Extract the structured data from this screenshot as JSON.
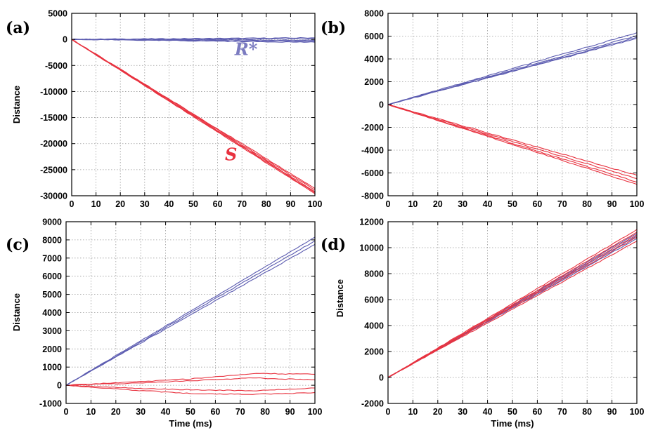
{
  "colors": {
    "blue": "#5b5bb0",
    "red": "#e8323f",
    "r_label": "#7b7bc0",
    "s_label": "#e8323f"
  },
  "chart_data": [
    {
      "id": "a",
      "panel_label": "(a)",
      "type": "line",
      "xlim": [
        0,
        100
      ],
      "ylim": [
        -30000,
        5000
      ],
      "xticks": [
        0,
        10,
        20,
        30,
        40,
        50,
        60,
        70,
        80,
        90,
        100
      ],
      "yticks": [
        -30000,
        -25000,
        -20000,
        -15000,
        -10000,
        -5000,
        0,
        5000
      ],
      "xlabel": "",
      "ylabel": "Distance",
      "grid": true,
      "series": [
        {
          "color": "blue",
          "x": [
            0,
            100
          ],
          "y": [
            0,
            300
          ]
        },
        {
          "color": "blue",
          "x": [
            0,
            100
          ],
          "y": [
            0,
            100
          ]
        },
        {
          "color": "blue",
          "x": [
            0,
            100
          ],
          "y": [
            0,
            -200
          ]
        },
        {
          "color": "blue",
          "x": [
            0,
            100
          ],
          "y": [
            0,
            -400
          ]
        },
        {
          "color": "blue",
          "x": [
            0,
            100
          ],
          "y": [
            0,
            -550
          ]
        },
        {
          "color": "red",
          "x": [
            0,
            100
          ],
          "y": [
            0,
            -28600
          ]
        },
        {
          "color": "red",
          "x": [
            0,
            100
          ],
          "y": [
            0,
            -28900
          ]
        },
        {
          "color": "red",
          "x": [
            0,
            100
          ],
          "y": [
            0,
            -29200
          ]
        },
        {
          "color": "red",
          "x": [
            0,
            100
          ],
          "y": [
            0,
            -29400
          ]
        },
        {
          "color": "red",
          "x": [
            0,
            100
          ],
          "y": [
            0,
            -29600
          ]
        }
      ],
      "annotations": [
        {
          "text": "R*",
          "color": "r_label",
          "x": 67,
          "y": -3000
        },
        {
          "text": "S",
          "color": "s_label",
          "x": 63,
          "y": -23200
        }
      ]
    },
    {
      "id": "b",
      "panel_label": "(b)",
      "type": "line",
      "xlim": [
        0,
        100
      ],
      "ylim": [
        -8000,
        8000
      ],
      "xticks": [
        0,
        10,
        20,
        30,
        40,
        50,
        60,
        70,
        80,
        90,
        100
      ],
      "yticks": [
        -8000,
        -6000,
        -4000,
        -2000,
        0,
        2000,
        4000,
        6000,
        8000
      ],
      "xlabel": "",
      "ylabel": "",
      "grid": true,
      "series": [
        {
          "color": "blue",
          "x": [
            0,
            100
          ],
          "y": [
            0,
            6300
          ]
        },
        {
          "color": "blue",
          "x": [
            0,
            100
          ],
          "y": [
            0,
            6050
          ]
        },
        {
          "color": "blue",
          "x": [
            0,
            100
          ],
          "y": [
            0,
            5900
          ]
        },
        {
          "color": "blue",
          "x": [
            0,
            100
          ],
          "y": [
            0,
            5800
          ]
        },
        {
          "color": "red",
          "x": [
            0,
            100
          ],
          "y": [
            0,
            -6200
          ]
        },
        {
          "color": "red",
          "x": [
            0,
            100
          ],
          "y": [
            0,
            -6500
          ]
        },
        {
          "color": "red",
          "x": [
            0,
            100
          ],
          "y": [
            0,
            -6800
          ]
        },
        {
          "color": "red",
          "x": [
            0,
            100
          ],
          "y": [
            0,
            -7000
          ]
        }
      ],
      "annotations": []
    },
    {
      "id": "c",
      "panel_label": "(c)",
      "type": "line",
      "xlim": [
        0,
        100
      ],
      "ylim": [
        -1000,
        9000
      ],
      "xticks": [
        0,
        10,
        20,
        30,
        40,
        50,
        60,
        70,
        80,
        90,
        100
      ],
      "yticks": [
        -1000,
        0,
        1000,
        2000,
        3000,
        4000,
        5000,
        6000,
        7000,
        8000,
        9000
      ],
      "xlabel": "Time (ms)",
      "ylabel": "Distance",
      "grid": true,
      "series": [
        {
          "color": "blue",
          "x": [
            0,
            100
          ],
          "y": [
            0,
            8150
          ]
        },
        {
          "color": "blue",
          "x": [
            0,
            100
          ],
          "y": [
            0,
            7950
          ]
        },
        {
          "color": "blue",
          "x": [
            0,
            100
          ],
          "y": [
            0,
            7750
          ]
        },
        {
          "color": "red",
          "x": [
            0,
            30,
            50,
            75,
            100
          ],
          "y": [
            0,
            200,
            350,
            650,
            600
          ]
        },
        {
          "color": "red",
          "x": [
            0,
            25,
            50,
            75,
            100
          ],
          "y": [
            0,
            100,
            250,
            400,
            300
          ]
        },
        {
          "color": "red",
          "x": [
            0,
            25,
            50,
            75,
            100
          ],
          "y": [
            0,
            -150,
            -250,
            -300,
            -150
          ]
        },
        {
          "color": "red",
          "x": [
            0,
            25,
            50,
            75,
            100
          ],
          "y": [
            0,
            -250,
            -450,
            -500,
            -400
          ]
        }
      ],
      "annotations": []
    },
    {
      "id": "d",
      "panel_label": "(d)",
      "type": "line",
      "xlim": [
        0,
        100
      ],
      "ylim": [
        -2000,
        12000
      ],
      "xticks": [
        0,
        10,
        20,
        30,
        40,
        50,
        60,
        70,
        80,
        90,
        100
      ],
      "yticks": [
        -2000,
        0,
        2000,
        4000,
        6000,
        8000,
        10000,
        12000
      ],
      "xlabel": "Time (ms)",
      "ylabel": "Distance",
      "grid": true,
      "series": [
        {
          "color": "blue",
          "x": [
            0,
            100
          ],
          "y": [
            0,
            11100
          ]
        },
        {
          "color": "blue",
          "x": [
            0,
            100
          ],
          "y": [
            0,
            10900
          ]
        },
        {
          "color": "blue",
          "x": [
            0,
            100
          ],
          "y": [
            0,
            10700
          ]
        },
        {
          "color": "red",
          "x": [
            0,
            100
          ],
          "y": [
            0,
            11400
          ]
        },
        {
          "color": "red",
          "x": [
            0,
            100
          ],
          "y": [
            0,
            11200
          ]
        },
        {
          "color": "red",
          "x": [
            0,
            100
          ],
          "y": [
            0,
            11000
          ]
        },
        {
          "color": "red",
          "x": [
            0,
            100
          ],
          "y": [
            0,
            10800
          ]
        },
        {
          "color": "red",
          "x": [
            0,
            100
          ],
          "y": [
            0,
            10500
          ]
        }
      ],
      "annotations": []
    }
  ]
}
